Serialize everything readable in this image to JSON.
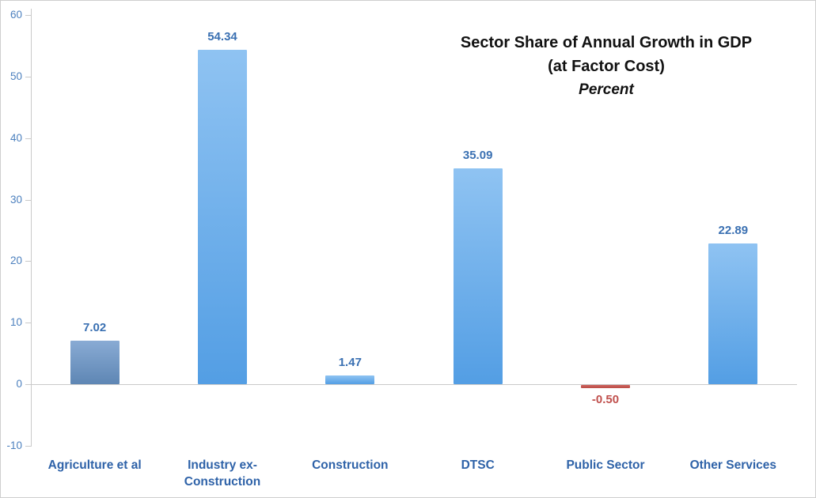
{
  "chart_data": {
    "type": "bar",
    "title": "Sector Share of Annual Growth in GDP",
    "subtitle": "(at Factor Cost)",
    "units_label": "Percent",
    "categories": [
      "Agriculture et al",
      "Industry ex-Construction",
      "Construction",
      "DTSC",
      "Public Sector",
      "Other Services"
    ],
    "values": [
      7.02,
      54.34,
      1.47,
      35.09,
      -0.5,
      22.89
    ],
    "value_labels": [
      "7.02",
      "54.34",
      "1.47",
      "35.09",
      "-0.50",
      "22.89"
    ],
    "ylim": [
      -10,
      60
    ],
    "ytick_step": 10,
    "yticks": [
      60,
      50,
      40,
      30,
      20,
      10,
      0,
      -10
    ],
    "grid": false,
    "legend": "none",
    "bar_variants": [
      "first",
      "normal",
      "normal",
      "normal",
      "negative",
      "normal"
    ],
    "colors": {
      "bar_top": "#8fc3f2",
      "bar_bottom": "#539ee4",
      "bar_first_top": "#89abd4",
      "bar_first_bottom": "#5e86b4",
      "bar_negative_top": "#cd6660",
      "bar_negative_bottom": "#bb4a45",
      "value_label": "#3a70b2",
      "negative_label": "#c0504d",
      "category_label": "#2e62a8",
      "ytick_label": "#4c80be",
      "axis_line": "#c9c9c9",
      "title": "#111111"
    }
  }
}
